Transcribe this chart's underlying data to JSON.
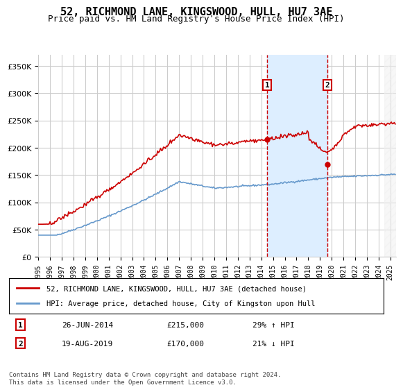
{
  "title": "52, RICHMOND LANE, KINGSWOOD, HULL, HU7 3AE",
  "subtitle": "Price paid vs. HM Land Registry's House Price Index (HPI)",
  "ylabel_ticks": [
    "£0",
    "£50K",
    "£100K",
    "£150K",
    "£200K",
    "£250K",
    "£300K",
    "£350K"
  ],
  "ytick_vals": [
    0,
    50000,
    100000,
    150000,
    200000,
    250000,
    300000,
    350000
  ],
  "ylim": [
    0,
    370000
  ],
  "xlim_start": 1995.0,
  "xlim_end": 2025.5,
  "marker1_x": 2014.49,
  "marker2_x": 2019.63,
  "marker1_price": 215000,
  "marker2_price": 170000,
  "marker1_label": "1",
  "marker2_label": "2",
  "marker1_date": "26-JUN-2014",
  "marker2_date": "19-AUG-2019",
  "marker1_pct": "29% ↑ HPI",
  "marker2_pct": "21% ↓ HPI",
  "legend_line1": "52, RICHMOND LANE, KINGSWOOD, HULL, HU7 3AE (detached house)",
  "legend_line2": "HPI: Average price, detached house, City of Kingston upon Hull",
  "footnote": "Contains HM Land Registry data © Crown copyright and database right 2024.\nThis data is licensed under the Open Government Licence v3.0.",
  "red_color": "#cc0000",
  "blue_color": "#6699cc",
  "shade_color": "#ddeeff",
  "title_fontsize": 11,
  "subtitle_fontsize": 9,
  "background_color": "#ffffff",
  "grid_color": "#cccccc"
}
